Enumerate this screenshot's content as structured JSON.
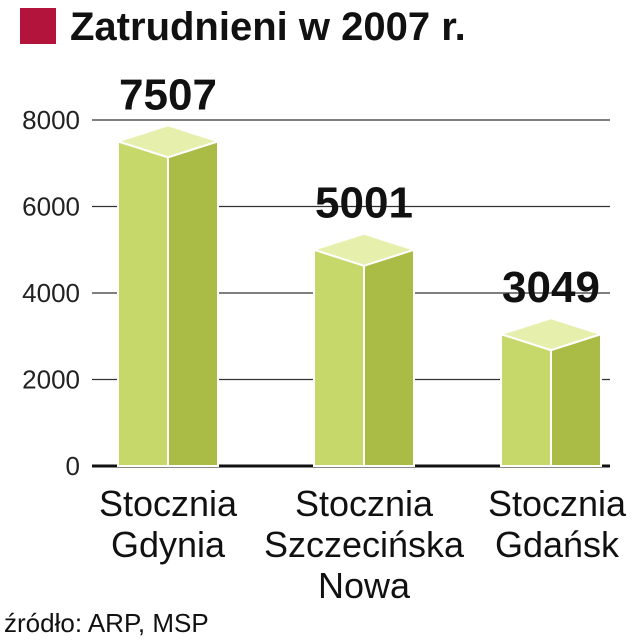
{
  "colors": {
    "title_marker": "#b2143c",
    "bar_front": "#c7d86b",
    "bar_side": "#aabc45",
    "bar_top": "#e6efac",
    "bar_edge": "#ffffff",
    "grid": "#333333",
    "baseline": "#111111"
  },
  "chart_data": {
    "type": "bar",
    "title": "Zatrudnieni w 2007 r.",
    "categories": [
      [
        "Stocznia",
        "Gdynia"
      ],
      [
        "Stocznia",
        "Szczecińska",
        "Nowa"
      ],
      [
        "Stocznia",
        "Gdańsk"
      ]
    ],
    "values": [
      7507,
      5001,
      3049
    ],
    "value_labels": [
      "7507",
      "5001",
      "3049"
    ],
    "yticks": [
      0,
      2000,
      4000,
      6000,
      8000
    ],
    "ytick_labels": [
      "0",
      "2000",
      "4000",
      "6000",
      "8000"
    ],
    "ylim": [
      0,
      8000
    ],
    "grid": true,
    "source": "źródło: ARP, MSP"
  }
}
